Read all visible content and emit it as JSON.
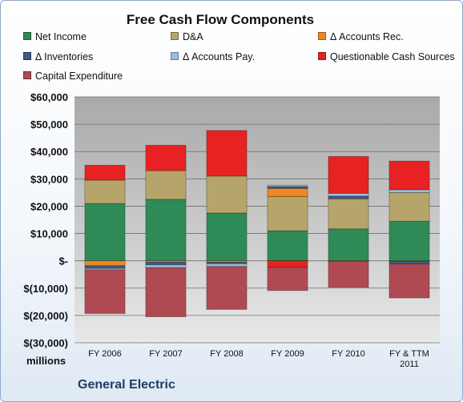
{
  "company": "General Electric",
  "chart_data": {
    "type": "bar",
    "stacked": true,
    "title": "Free Cash Flow Components",
    "ylabel": "",
    "units_label": "millions",
    "categories": [
      "FY 2006",
      "FY 2007",
      "FY 2008",
      "FY 2009",
      "FY 2010",
      "FY & TTM 2011"
    ],
    "ylim": [
      -30000,
      60000
    ],
    "yticks": [
      60000,
      50000,
      40000,
      30000,
      20000,
      10000,
      0,
      -10000,
      -20000,
      -30000
    ],
    "ytick_labels": [
      "$60,000",
      "$50,000",
      "$40,000",
      "$30,000",
      "$20,000",
      "$10,000",
      "$-",
      "$(10,000)",
      "$(20,000)",
      "$(30,000)"
    ],
    "grid": true,
    "legend_position": "top",
    "series": [
      {
        "name": "Net Income",
        "color": "#2e8b57",
        "values": [
          21000,
          22500,
          17500,
          11000,
          11700,
          14500
        ]
      },
      {
        "name": "D&A",
        "color": "#b6a56a",
        "values": [
          8500,
          10500,
          13500,
          12500,
          11000,
          10500
        ]
      },
      {
        "name": "Δ Accounts Rec.",
        "color": "#ee8822",
        "values": [
          -1800,
          -500,
          -500,
          3000,
          -200,
          -200
        ]
      },
      {
        "name": "Δ Inventories",
        "color": "#3c5a84",
        "values": [
          -1000,
          -1000,
          -600,
          700,
          1000,
          -1000
        ]
      },
      {
        "name": "Δ Accounts Pay.",
        "color": "#9dbde0",
        "values": [
          -500,
          -1000,
          -1000,
          500,
          1000,
          1000
        ]
      },
      {
        "name": "Questionable Cash Sources",
        "color": "#e82222",
        "values": [
          5500,
          9300,
          16700,
          -2400,
          13500,
          10500
        ]
      },
      {
        "name": "Capital Expenditure",
        "color": "#b04a52",
        "values": [
          -16000,
          -18000,
          -15700,
          -8500,
          -9500,
          -12400
        ]
      }
    ]
  }
}
